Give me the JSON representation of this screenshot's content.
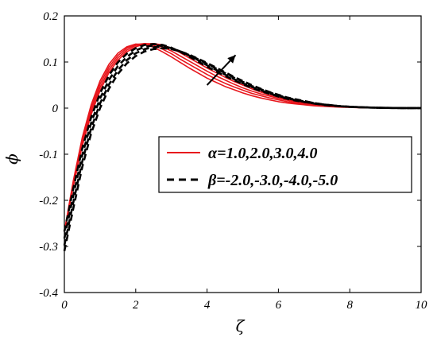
{
  "chart_data": {
    "type": "line",
    "xlabel": "ζ",
    "ylabel": "ϕ",
    "xlim": [
      0,
      10
    ],
    "ylim": [
      -0.4,
      0.2
    ],
    "xticks": [
      0,
      2,
      4,
      6,
      8,
      10
    ],
    "yticks": [
      -0.4,
      -0.3,
      -0.2,
      -0.1,
      0,
      0.1,
      0.2
    ],
    "grid": false,
    "legend_position": "center-right",
    "legend": [
      {
        "label": "α=1.0,2.0,3.0,4.0",
        "style": "solid",
        "color": "#e8161c"
      },
      {
        "label": "β=-2.0,-3.0,-4.0,-5.0",
        "style": "dashed",
        "color": "#000000"
      }
    ],
    "x": [
      0,
      0.25,
      0.5,
      0.75,
      1,
      1.25,
      1.5,
      1.75,
      2,
      2.25,
      2.5,
      2.75,
      3,
      3.25,
      3.5,
      3.75,
      4,
      4.25,
      4.5,
      4.75,
      5,
      5.25,
      5.5,
      5.75,
      6,
      6.25,
      6.5,
      6.75,
      7,
      7.25,
      7.5,
      7.75,
      8,
      8.25,
      8.5,
      8.75,
      9,
      9.25,
      9.5,
      9.75,
      10
    ],
    "series": [
      {
        "style": "solid",
        "color": "#e8161c",
        "values": [
          -0.268,
          -0.158,
          -0.064,
          0.007,
          0.059,
          0.095,
          0.119,
          0.133,
          0.139,
          0.138,
          0.132,
          0.122,
          0.111,
          0.099,
          0.087,
          0.076,
          0.065,
          0.056,
          0.047,
          0.04,
          0.033,
          0.027,
          0.022,
          0.018,
          0.014,
          0.011,
          0.009,
          0.007,
          0.005,
          0.004,
          0.003,
          0.002,
          0.0015,
          0.001,
          0.0007,
          0.0005,
          0.0003,
          0.0002,
          0.0001,
          0.0,
          0.0
        ]
      },
      {
        "style": "solid",
        "color": "#e8161c",
        "values": [
          -0.268,
          -0.162,
          -0.07,
          0.0,
          0.052,
          0.089,
          0.114,
          0.13,
          0.138,
          0.14,
          0.136,
          0.128,
          0.118,
          0.106,
          0.095,
          0.084,
          0.073,
          0.063,
          0.054,
          0.046,
          0.039,
          0.032,
          0.027,
          0.022,
          0.018,
          0.014,
          0.011,
          0.009,
          0.007,
          0.005,
          0.004,
          0.003,
          0.002,
          0.0015,
          0.001,
          0.0007,
          0.0005,
          0.0003,
          0.0002,
          0.0001,
          0.0
        ]
      },
      {
        "style": "solid",
        "color": "#e8161c",
        "values": [
          -0.268,
          -0.166,
          -0.076,
          -0.007,
          0.045,
          0.083,
          0.109,
          0.126,
          0.136,
          0.14,
          0.139,
          0.133,
          0.124,
          0.113,
          0.102,
          0.091,
          0.08,
          0.07,
          0.061,
          0.052,
          0.044,
          0.037,
          0.031,
          0.026,
          0.021,
          0.017,
          0.013,
          0.01,
          0.008,
          0.006,
          0.005,
          0.0035,
          0.0025,
          0.0018,
          0.0012,
          0.0008,
          0.0005,
          0.0003,
          0.0002,
          0.0001,
          0.0
        ]
      },
      {
        "style": "solid",
        "color": "#e8161c",
        "values": [
          -0.268,
          -0.17,
          -0.082,
          -0.014,
          0.038,
          0.077,
          0.104,
          0.122,
          0.133,
          0.139,
          0.14,
          0.137,
          0.13,
          0.12,
          0.109,
          0.098,
          0.087,
          0.077,
          0.067,
          0.058,
          0.05,
          0.042,
          0.035,
          0.029,
          0.024,
          0.019,
          0.015,
          0.012,
          0.009,
          0.007,
          0.005,
          0.004,
          0.003,
          0.002,
          0.0014,
          0.0009,
          0.0006,
          0.0004,
          0.0002,
          0.0001,
          0.0
        ]
      },
      {
        "style": "dashed",
        "color": "#000000",
        "values": [
          -0.268,
          -0.175,
          -0.088,
          -0.02,
          0.032,
          0.071,
          0.099,
          0.118,
          0.13,
          0.137,
          0.139,
          0.137,
          0.131,
          0.122,
          0.112,
          0.101,
          0.09,
          0.08,
          0.07,
          0.061,
          0.052,
          0.044,
          0.037,
          0.031,
          0.025,
          0.02,
          0.016,
          0.013,
          0.01,
          0.007,
          0.005,
          0.004,
          0.003,
          0.002,
          0.0014,
          0.0009,
          0.0006,
          0.0004,
          0.0002,
          0.0001,
          0.0
        ]
      },
      {
        "style": "dashed",
        "color": "#000000",
        "values": [
          -0.283,
          -0.19,
          -0.102,
          -0.032,
          0.021,
          0.061,
          0.091,
          0.111,
          0.125,
          0.133,
          0.136,
          0.135,
          0.13,
          0.123,
          0.114,
          0.104,
          0.093,
          0.083,
          0.073,
          0.063,
          0.054,
          0.046,
          0.039,
          0.032,
          0.026,
          0.021,
          0.017,
          0.013,
          0.01,
          0.008,
          0.006,
          0.004,
          0.003,
          0.002,
          0.0014,
          0.0009,
          0.0006,
          0.0004,
          0.0002,
          0.0001,
          0.0
        ]
      },
      {
        "style": "dashed",
        "color": "#000000",
        "values": [
          -0.298,
          -0.205,
          -0.116,
          -0.044,
          0.01,
          0.051,
          0.082,
          0.104,
          0.119,
          0.128,
          0.132,
          0.133,
          0.129,
          0.123,
          0.115,
          0.106,
          0.096,
          0.086,
          0.076,
          0.066,
          0.057,
          0.048,
          0.041,
          0.034,
          0.028,
          0.022,
          0.018,
          0.014,
          0.011,
          0.008,
          0.006,
          0.004,
          0.003,
          0.002,
          0.0014,
          0.0009,
          0.0006,
          0.0004,
          0.0002,
          0.0001,
          0.0
        ]
      },
      {
        "style": "dashed",
        "color": "#000000",
        "values": [
          -0.31,
          -0.218,
          -0.128,
          -0.055,
          0.0,
          0.042,
          0.074,
          0.097,
          0.113,
          0.123,
          0.128,
          0.13,
          0.128,
          0.123,
          0.116,
          0.107,
          0.098,
          0.088,
          0.078,
          0.068,
          0.059,
          0.05,
          0.042,
          0.035,
          0.029,
          0.023,
          0.019,
          0.015,
          0.011,
          0.008,
          0.006,
          0.004,
          0.003,
          0.002,
          0.0014,
          0.0009,
          0.0006,
          0.0004,
          0.0002,
          0.0001,
          0.0
        ]
      }
    ],
    "annotations": [
      {
        "type": "arrow",
        "direction": "increasing",
        "from": [
          4.0,
          0.05
        ],
        "to": [
          4.8,
          0.115
        ]
      }
    ]
  }
}
